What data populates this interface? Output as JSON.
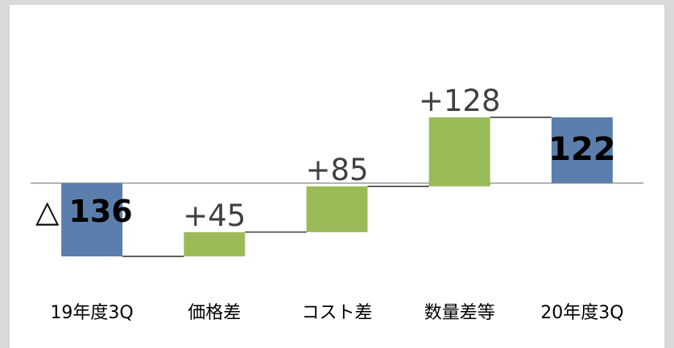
{
  "chart_data": {
    "type": "bar",
    "subtype": "waterfall",
    "categories": [
      "19年度3Q",
      "価格差",
      "コスト差",
      "数量差等",
      "20年度3Q"
    ],
    "values": [
      -136,
      45,
      85,
      128,
      122
    ],
    "measure": [
      "absolute",
      "relative",
      "relative",
      "relative",
      "total"
    ],
    "labels": [
      "△ 136",
      "+45",
      "+85",
      "+128",
      "122"
    ],
    "title": "",
    "xlabel": "",
    "ylabel": "",
    "ylim": [
      -136,
      128
    ],
    "grid": false,
    "legend": "none",
    "colors": {
      "total": "#5b7fad",
      "increase": "#9bbb59",
      "axis": "#9a9a9a",
      "connector": "#000000",
      "label_total": "#000000",
      "label_delta": "#404040",
      "background": "#ffffff",
      "page": "#d9d9d9"
    }
  }
}
